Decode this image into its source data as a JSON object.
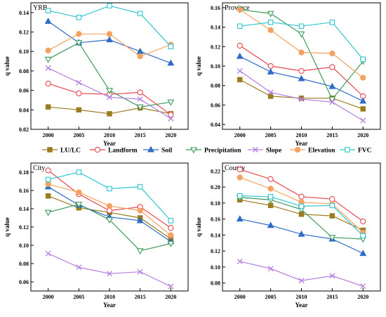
{
  "chart_data": [
    {
      "type": "line",
      "title": "YRB",
      "xlabel": "Year",
      "ylabel": "q value",
      "x": [
        2000,
        2005,
        2010,
        2015,
        2020
      ],
      "xticks": [
        "2000",
        "2005",
        "2010",
        "2015",
        "2020"
      ],
      "ylim": [
        0.02,
        0.15
      ],
      "yticks": [
        "0.02",
        "0.04",
        "0.06",
        "0.08",
        "0.10",
        "0.12",
        "0.14"
      ],
      "yticks_values": [
        0.02,
        0.04,
        0.06,
        0.08,
        0.1,
        0.12,
        0.14
      ],
      "grid": false,
      "series": [
        {
          "name": "LU/LC",
          "values": [
            0.043,
            0.04,
            0.036,
            0.042,
            0.036
          ]
        },
        {
          "name": "Landform",
          "values": [
            0.067,
            0.057,
            0.056,
            0.058,
            0.035
          ]
        },
        {
          "name": "Soil",
          "values": [
            0.131,
            0.109,
            0.112,
            0.1,
            0.088
          ]
        },
        {
          "name": "Precipitation",
          "values": [
            0.092,
            0.109,
            0.06,
            0.043,
            0.048
          ]
        },
        {
          "name": "Slope",
          "values": [
            0.083,
            0.068,
            0.053,
            0.051,
            0.031
          ]
        },
        {
          "name": "Elevation",
          "values": [
            0.101,
            0.118,
            0.118,
            0.095,
            0.107
          ]
        },
        {
          "name": "FVC",
          "values": [
            0.142,
            0.135,
            0.147,
            0.139,
            0.105
          ]
        }
      ]
    },
    {
      "type": "line",
      "title": "Province",
      "xlabel": "Year",
      "ylabel": "q value",
      "x": [
        2000,
        2005,
        2010,
        2015,
        2020
      ],
      "xticks": [
        "2000",
        "2005",
        "2010",
        "2015",
        "2020"
      ],
      "ylim": [
        0.035,
        0.165
      ],
      "yticks": [
        "0.04",
        "0.06",
        "0.08",
        "0.10",
        "0.12",
        "0.14",
        "0.16"
      ],
      "yticks_values": [
        0.04,
        0.06,
        0.08,
        0.1,
        0.12,
        0.14,
        0.16
      ],
      "grid": false,
      "series": [
        {
          "name": "LU/LC",
          "values": [
            0.086,
            0.069,
            0.067,
            0.067,
            0.056
          ]
        },
        {
          "name": "Landform",
          "values": [
            0.121,
            0.1,
            0.095,
            0.099,
            0.069
          ]
        },
        {
          "name": "Soil",
          "values": [
            0.11,
            0.094,
            0.087,
            0.079,
            0.064
          ]
        },
        {
          "name": "Precipitation",
          "values": [
            0.158,
            0.154,
            0.133,
            0.066,
            0.105
          ]
        },
        {
          "name": "Slope",
          "values": [
            0.095,
            0.073,
            0.066,
            0.063,
            0.044
          ]
        },
        {
          "name": "Elevation",
          "values": [
            0.158,
            0.137,
            0.114,
            0.113,
            0.088
          ]
        },
        {
          "name": "FVC",
          "values": [
            0.141,
            0.145,
            0.141,
            0.145,
            0.107
          ]
        }
      ]
    },
    {
      "type": "line",
      "title": "City",
      "xlabel": "Year",
      "ylabel": "q value",
      "x": [
        2000,
        2005,
        2010,
        2015,
        2020
      ],
      "xticks": [
        "2000",
        "2005",
        "2010",
        "2015",
        "2020"
      ],
      "ylim": [
        0.05,
        0.19
      ],
      "yticks": [
        "0.06",
        "0.08",
        "0.10",
        "0.12",
        "0.14",
        "0.16",
        "0.18"
      ],
      "yticks_values": [
        0.06,
        0.08,
        0.1,
        0.12,
        0.14,
        0.16,
        0.18
      ],
      "grid": false,
      "series": [
        {
          "name": "LU/LC",
          "values": [
            0.154,
            0.141,
            0.136,
            0.13,
            0.107
          ]
        },
        {
          "name": "Landform",
          "values": [
            0.182,
            0.156,
            0.138,
            0.142,
            0.119
          ]
        },
        {
          "name": "Soil",
          "values": [
            0.164,
            0.144,
            0.131,
            0.127,
            0.104
          ]
        },
        {
          "name": "Precipitation",
          "values": [
            0.136,
            0.145,
            0.128,
            0.094,
            0.102
          ]
        },
        {
          "name": "Slope",
          "values": [
            0.091,
            0.076,
            0.069,
            0.071,
            0.055
          ]
        },
        {
          "name": "Elevation",
          "values": [
            0.167,
            0.158,
            0.143,
            0.138,
            0.111
          ]
        },
        {
          "name": "FVC",
          "values": [
            0.172,
            0.18,
            0.162,
            0.164,
            0.127
          ]
        }
      ]
    },
    {
      "type": "line",
      "title": "County",
      "xlabel": "Year",
      "ylabel": "q value",
      "x": [
        2000,
        2005,
        2010,
        2015,
        2020
      ],
      "xticks": [
        "2000",
        "2005",
        "2010",
        "2015",
        "2020"
      ],
      "ylim": [
        0.07,
        0.23
      ],
      "yticks": [
        "0.08",
        "0.10",
        "0.12",
        "0.14",
        "0.16",
        "0.18",
        "0.20",
        "0.22"
      ],
      "yticks_values": [
        0.08,
        0.1,
        0.12,
        0.14,
        0.16,
        0.18,
        0.2,
        0.22
      ],
      "grid": false,
      "series": [
        {
          "name": "LU/LC",
          "values": [
            0.184,
            0.177,
            0.166,
            0.164,
            0.146
          ]
        },
        {
          "name": "Landform",
          "values": [
            0.222,
            0.21,
            0.188,
            0.185,
            0.157
          ]
        },
        {
          "name": "Soil",
          "values": [
            0.16,
            0.152,
            0.141,
            0.135,
            0.117
          ]
        },
        {
          "name": "Precipitation",
          "values": [
            0.187,
            0.184,
            0.172,
            0.137,
            0.135
          ]
        },
        {
          "name": "Slope",
          "values": [
            0.107,
            0.098,
            0.083,
            0.089,
            0.076
          ]
        },
        {
          "name": "Elevation",
          "values": [
            0.212,
            0.198,
            0.181,
            0.179,
            0.143
          ]
        },
        {
          "name": "FVC",
          "values": [
            0.189,
            0.188,
            0.176,
            0.177,
            0.139
          ]
        }
      ]
    }
  ],
  "legend": {
    "placement": "center",
    "items": [
      {
        "name": "LU/LC",
        "color": "#9a7d1e",
        "marker": "square",
        "filled": true
      },
      {
        "name": "Landform",
        "color": "#e8474f",
        "marker": "circle",
        "filled": false
      },
      {
        "name": "Soil",
        "color": "#2e6cc7",
        "marker": "triangle-up",
        "filled": true
      },
      {
        "name": "Precipitation",
        "color": "#3e9a5b",
        "marker": "triangle-down",
        "filled": false
      },
      {
        "name": "Slope",
        "color": "#b57de0",
        "marker": "x",
        "filled": false
      },
      {
        "name": "Elevation",
        "color": "#f4a261",
        "marker": "circle",
        "filled": true
      },
      {
        "name": "FVC",
        "color": "#2ec6cf",
        "marker": "square",
        "filled": false
      }
    ]
  }
}
